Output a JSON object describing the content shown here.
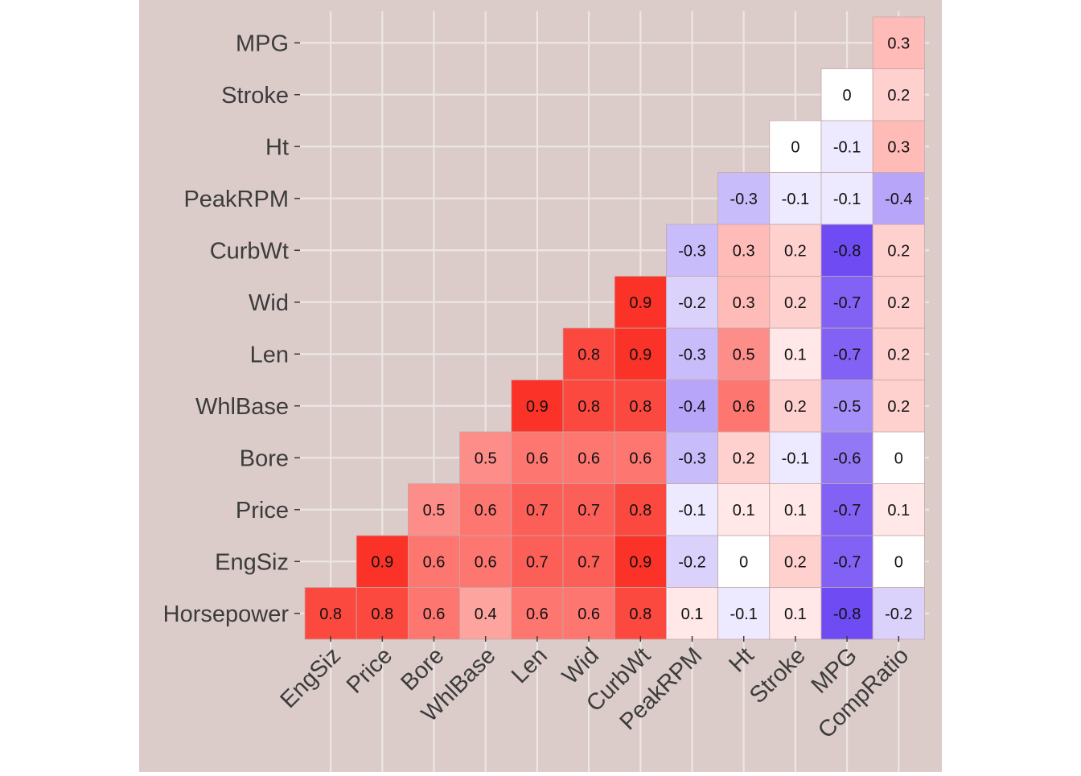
{
  "chart_data": {
    "type": "heatmap",
    "title": "",
    "xlabel": "",
    "ylabel": "",
    "x_labels": [
      "EngSiz",
      "Price",
      "Bore",
      "WhlBase",
      "Len",
      "Wid",
      "CurbWt",
      "PeakRPM",
      "Ht",
      "Stroke",
      "MPG",
      "CompRatio"
    ],
    "y_labels": [
      "Horsepower",
      "EngSiz",
      "Price",
      "Bore",
      "WhlBase",
      "Len",
      "Wid",
      "CurbWt",
      "PeakRPM",
      "Ht",
      "Stroke",
      "MPG"
    ],
    "values": [
      [
        0.8,
        0.8,
        0.6,
        0.4,
        0.6,
        0.6,
        0.8,
        0.1,
        -0.1,
        0.1,
        -0.8,
        -0.2
      ],
      [
        null,
        0.9,
        0.6,
        0.6,
        0.7,
        0.7,
        0.9,
        -0.2,
        0,
        0.2,
        -0.7,
        0
      ],
      [
        null,
        null,
        0.5,
        0.6,
        0.7,
        0.7,
        0.8,
        -0.1,
        0.1,
        0.1,
        -0.7,
        0.1
      ],
      [
        null,
        null,
        null,
        0.5,
        0.6,
        0.6,
        0.6,
        -0.3,
        0.2,
        -0.1,
        -0.6,
        0
      ],
      [
        null,
        null,
        null,
        null,
        0.9,
        0.8,
        0.8,
        -0.4,
        0.6,
        0.2,
        -0.5,
        0.2
      ],
      [
        null,
        null,
        null,
        null,
        null,
        0.8,
        0.9,
        -0.3,
        0.5,
        0.1,
        -0.7,
        0.2
      ],
      [
        null,
        null,
        null,
        null,
        null,
        null,
        0.9,
        -0.2,
        0.3,
        0.2,
        -0.7,
        0.2
      ],
      [
        null,
        null,
        null,
        null,
        null,
        null,
        null,
        -0.3,
        0.3,
        0.2,
        -0.8,
        0.2
      ],
      [
        null,
        null,
        null,
        null,
        null,
        null,
        null,
        null,
        -0.3,
        -0.1,
        -0.1,
        -0.4
      ],
      [
        null,
        null,
        null,
        null,
        null,
        null,
        null,
        null,
        null,
        0,
        -0.1,
        0.3
      ],
      [
        null,
        null,
        null,
        null,
        null,
        null,
        null,
        null,
        null,
        null,
        0,
        0.2
      ],
      [
        null,
        null,
        null,
        null,
        null,
        null,
        null,
        null,
        null,
        null,
        null,
        0.3
      ]
    ],
    "value_range": [
      -1,
      1
    ],
    "colors": {
      "negative": "#4b1ef0",
      "zero": "#ffffff",
      "positive": "#fb1b10",
      "panel_background": "#dcccc9",
      "grid": "#ece6e4",
      "tile_border": "#c4a8a8",
      "label_text": "#3c3c3c"
    },
    "grid": true,
    "legend": "none"
  }
}
